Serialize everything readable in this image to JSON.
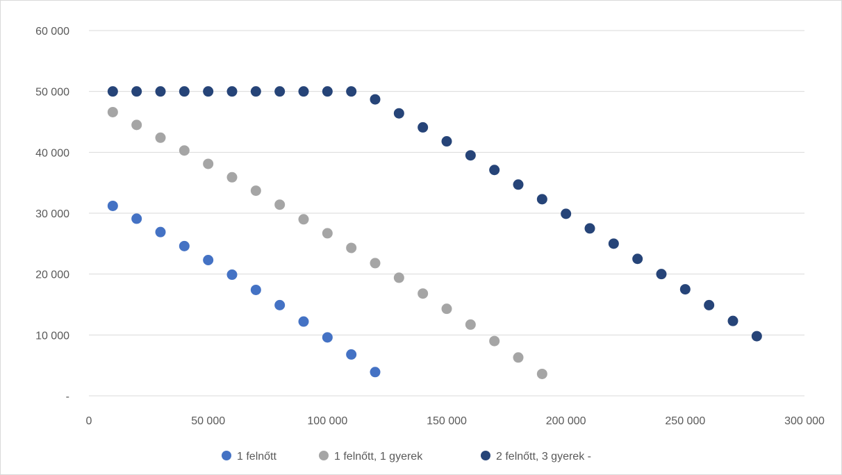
{
  "chart_data": {
    "type": "scatter",
    "title": "",
    "xlabel": "",
    "ylabel": "",
    "xlim": [
      0,
      300000
    ],
    "ylim": [
      0,
      60000
    ],
    "x_ticks": [
      0,
      50000,
      100000,
      150000,
      200000,
      250000,
      300000
    ],
    "x_tick_labels": [
      "0",
      "50 000",
      "100 000",
      "150 000",
      "200 000",
      "250 000",
      "300 000"
    ],
    "y_ticks": [
      0,
      10000,
      20000,
      30000,
      40000,
      50000,
      60000
    ],
    "y_tick_labels": [
      "-",
      "10 000",
      "20 000",
      "30 000",
      "40 000",
      "50 000",
      "60 000"
    ],
    "grid": "horizontal",
    "legend_position": "bottom",
    "series": [
      {
        "name": "1 felnőtt",
        "color": "#4472c4",
        "points": [
          [
            10000,
            31200
          ],
          [
            20000,
            29100
          ],
          [
            30000,
            26900
          ],
          [
            40000,
            24600
          ],
          [
            50000,
            22300
          ],
          [
            60000,
            19900
          ],
          [
            70000,
            17400
          ],
          [
            80000,
            14900
          ],
          [
            90000,
            12200
          ],
          [
            100000,
            9600
          ],
          [
            110000,
            6800
          ],
          [
            120000,
            3900
          ]
        ]
      },
      {
        "name": "1 felnőtt, 1 gyerek",
        "color": "#a5a5a5",
        "points": [
          [
            10000,
            46600
          ],
          [
            20000,
            44500
          ],
          [
            30000,
            42400
          ],
          [
            40000,
            40300
          ],
          [
            50000,
            38100
          ],
          [
            60000,
            35900
          ],
          [
            70000,
            33700
          ],
          [
            80000,
            31400
          ],
          [
            90000,
            29000
          ],
          [
            100000,
            26700
          ],
          [
            110000,
            24300
          ],
          [
            120000,
            21800
          ],
          [
            130000,
            19400
          ],
          [
            140000,
            16800
          ],
          [
            150000,
            14300
          ],
          [
            160000,
            11700
          ],
          [
            170000,
            9000
          ],
          [
            180000,
            6300
          ],
          [
            190000,
            3600
          ]
        ]
      },
      {
        "name": "2 felnőtt, 3 gyerek  -",
        "color": "#264478",
        "points": [
          [
            10000,
            50000
          ],
          [
            20000,
            50000
          ],
          [
            30000,
            50000
          ],
          [
            40000,
            50000
          ],
          [
            50000,
            50000
          ],
          [
            60000,
            50000
          ],
          [
            70000,
            50000
          ],
          [
            80000,
            50000
          ],
          [
            90000,
            50000
          ],
          [
            100000,
            50000
          ],
          [
            110000,
            50000
          ],
          [
            120000,
            48700
          ],
          [
            130000,
            46400
          ],
          [
            140000,
            44100
          ],
          [
            150000,
            41800
          ],
          [
            160000,
            39500
          ],
          [
            170000,
            37100
          ],
          [
            180000,
            34700
          ],
          [
            190000,
            32300
          ],
          [
            200000,
            29900
          ],
          [
            210000,
            27500
          ],
          [
            220000,
            25000
          ],
          [
            230000,
            22500
          ],
          [
            240000,
            20000
          ],
          [
            250000,
            17500
          ],
          [
            260000,
            14900
          ],
          [
            270000,
            12300
          ],
          [
            280000,
            9800
          ]
        ]
      }
    ]
  }
}
